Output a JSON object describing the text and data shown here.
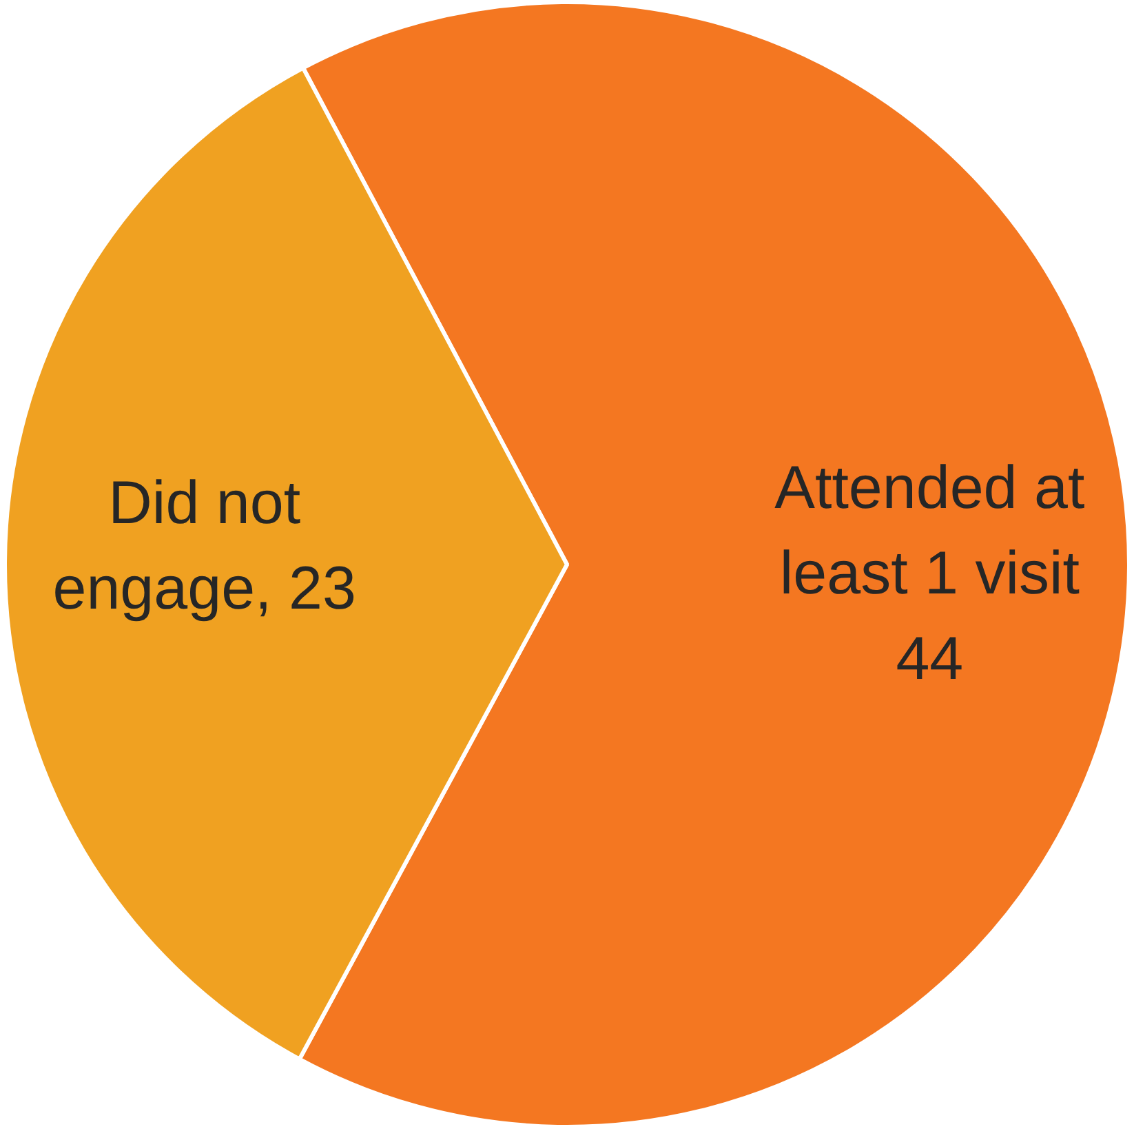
{
  "chart_data": {
    "type": "pie",
    "categories": [
      "Attended at least 1 visit",
      "Did not engage"
    ],
    "values": [
      44,
      23
    ],
    "value_labels": [
      "44",
      ", 23"
    ],
    "colors": [
      "#f47721",
      "#f0a121"
    ],
    "legend": false
  }
}
